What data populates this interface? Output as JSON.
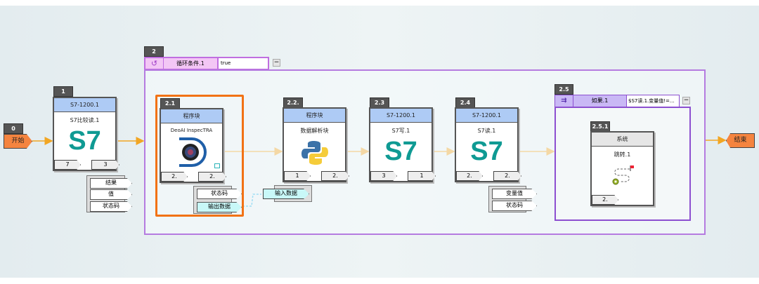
{
  "start": {
    "id": "0",
    "label": "开始"
  },
  "end": {
    "label": "结束"
  },
  "n1": {
    "id": "1",
    "header": "S7-1200.1",
    "title": "S7比较读.1",
    "logo": "S7",
    "port_in": "7",
    "port_out": "3",
    "outputs": [
      "结果",
      "值",
      "状态码"
    ]
  },
  "loop": {
    "id": "2",
    "icon": "loop-icon",
    "label": "循环条件.1",
    "value": "true",
    "collapse": "−"
  },
  "n21": {
    "id": "2.1",
    "header": "程序块",
    "title": "DeoAI InspecTRA",
    "port_in": "2.",
    "port_out": "2.",
    "outputs": [
      "状态码",
      "输出数据"
    ]
  },
  "n22": {
    "id": "2.2.",
    "header": "程序块",
    "title": "数据解析块",
    "port_in": "1",
    "port_out": "2.",
    "inputs": [
      "输入数据"
    ]
  },
  "n23": {
    "id": "2.3",
    "header": "S7-1200.1",
    "title": "S7写.1",
    "logo": "S7",
    "port_in": "3",
    "port_out": "1"
  },
  "n24": {
    "id": "2.4",
    "header": "S7-1200.1",
    "title": "S7读.1",
    "logo": "S7",
    "port_in": "2.",
    "port_out": "2.",
    "outputs": [
      "变量值",
      "状态码"
    ]
  },
  "cond": {
    "id": "2.5",
    "icon": "branch-icon",
    "label": "如果.1",
    "value": "$S7读.1.变量值!=...",
    "collapse": "−"
  },
  "n251": {
    "id": "2.5.1",
    "header": "系统",
    "title": "跳转.1",
    "port_in": "2."
  },
  "colors": {
    "orange": "#f5843f",
    "arrow": "#f2a623",
    "s7": "#0f9a93",
    "header": "#aecbf5",
    "loop": "#b57be0",
    "output_highlight": "#c8f8f8"
  }
}
